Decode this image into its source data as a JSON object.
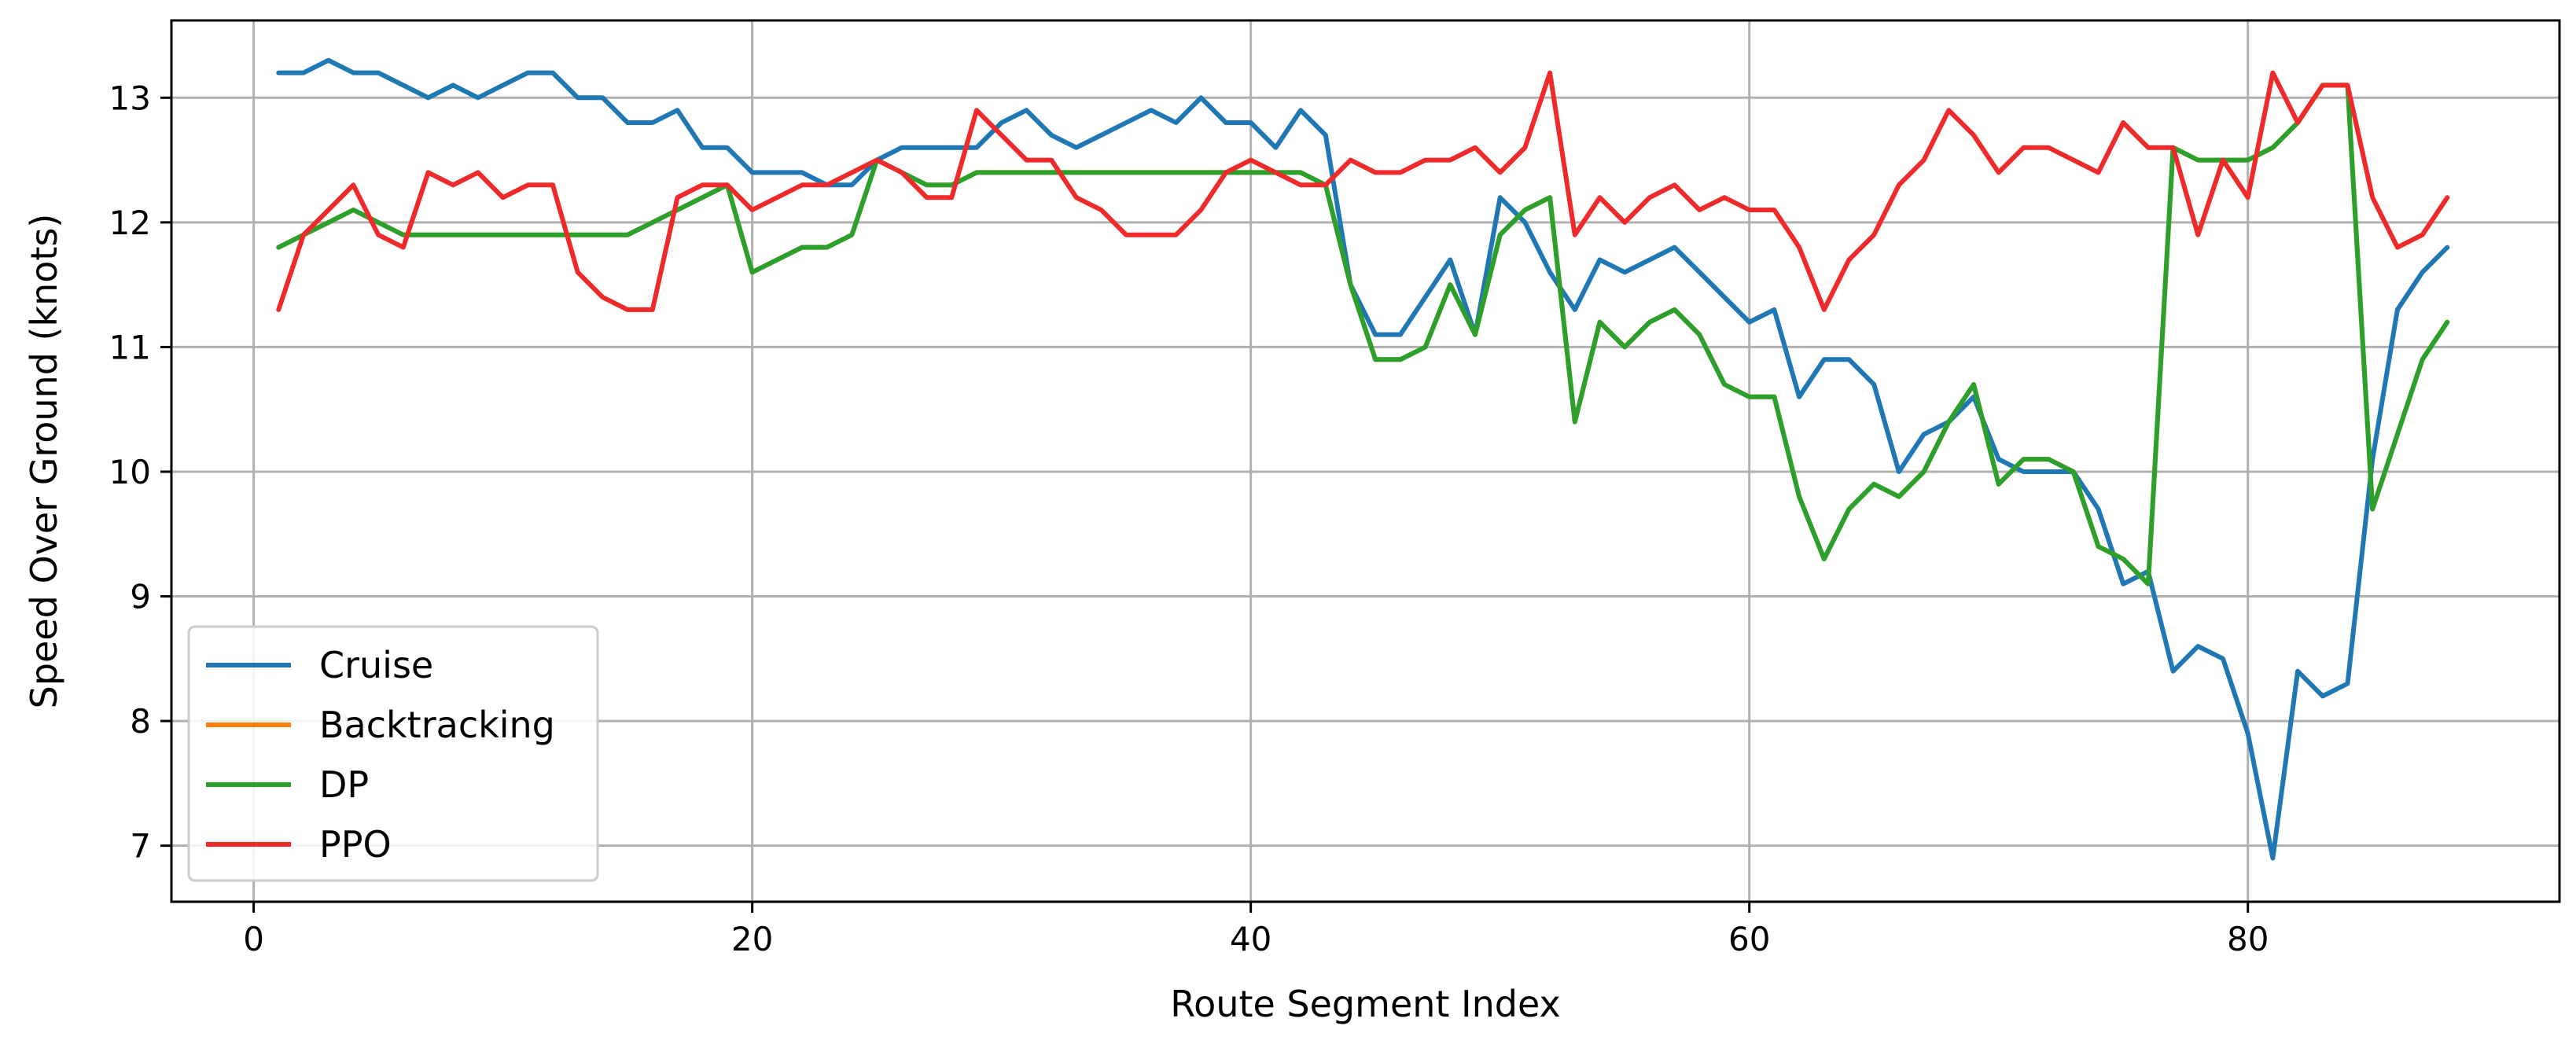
{
  "chart_data": {
    "type": "line",
    "title": "",
    "xlabel": "Route Segment Index",
    "ylabel": "Speed Over Ground (knots)",
    "xlim": [
      -3.3,
      92.5
    ],
    "ylim": [
      6.55,
      13.62
    ],
    "x_ticks": [
      0,
      20,
      40,
      60,
      80
    ],
    "y_ticks": [
      7,
      8,
      9,
      10,
      11,
      12,
      13
    ],
    "grid": true,
    "legend_position": "lower-left",
    "x": [
      1,
      2,
      3,
      4,
      5,
      6,
      7,
      8,
      9,
      10,
      11,
      12,
      13,
      14,
      15,
      16,
      17,
      18,
      19,
      20,
      21,
      22,
      23,
      24,
      25,
      26,
      27,
      28,
      29,
      30,
      31,
      32,
      33,
      34,
      35,
      36,
      37,
      38,
      39,
      40,
      41,
      42,
      43,
      44,
      45,
      46,
      47,
      48,
      49,
      50,
      51,
      52,
      53,
      54,
      55,
      56,
      57,
      58,
      59,
      60,
      61,
      62,
      63,
      64,
      65,
      66,
      67,
      68,
      69,
      70,
      71,
      72,
      73,
      74,
      75,
      76,
      77,
      78,
      79,
      80,
      81,
      82,
      83,
      84,
      85,
      86,
      87,
      88
    ],
    "series": [
      {
        "name": "Cruise",
        "color": "#1f77b4",
        "values": [
          13.2,
          13.2,
          13.3,
          13.2,
          13.2,
          13.1,
          13.0,
          13.1,
          13.0,
          13.1,
          13.2,
          13.2,
          13.0,
          13.0,
          12.8,
          12.8,
          12.9,
          12.6,
          12.6,
          12.4,
          12.4,
          12.4,
          12.3,
          12.3,
          12.5,
          12.6,
          12.6,
          12.6,
          12.6,
          12.8,
          12.9,
          12.7,
          12.6,
          12.7,
          12.8,
          12.9,
          12.8,
          13.0,
          12.8,
          12.8,
          12.6,
          12.9,
          12.7,
          11.5,
          11.1,
          11.1,
          11.4,
          11.7,
          11.1,
          12.2,
          12.0,
          11.6,
          11.3,
          11.7,
          11.6,
          11.7,
          11.8,
          11.6,
          11.4,
          11.2,
          11.3,
          10.6,
          10.9,
          10.9,
          10.7,
          10.0,
          10.3,
          10.4,
          10.6,
          10.1,
          10.0,
          10.0,
          10.0,
          9.7,
          9.1,
          9.2,
          8.4,
          8.6,
          8.5,
          7.9,
          6.9,
          8.4,
          8.2,
          8.3,
          10.1,
          11.3,
          11.6,
          11.8
        ]
      },
      {
        "name": "Backtracking",
        "color": "#ff7f0e",
        "values": [
          11.8,
          11.9,
          12.0,
          12.1,
          12.0,
          11.9,
          11.9,
          11.9,
          11.9,
          11.9,
          11.9,
          11.9,
          11.9,
          11.9,
          11.9,
          12.0,
          12.1,
          12.2,
          12.3,
          11.6,
          11.7,
          11.8,
          11.8,
          11.9,
          12.5,
          12.4,
          12.3,
          12.3,
          12.4,
          12.4,
          12.4,
          12.4,
          12.4,
          12.4,
          12.4,
          12.4,
          12.4,
          12.4,
          12.4,
          12.4,
          12.4,
          12.4,
          12.3,
          11.5,
          10.9,
          10.9,
          11.0,
          11.5,
          11.1,
          11.9,
          12.1,
          12.2,
          10.4,
          11.2,
          11.0,
          11.2,
          11.3,
          11.1,
          10.7,
          10.6,
          10.6,
          9.8,
          9.3,
          9.7,
          9.9,
          9.8,
          10.0,
          10.4,
          10.7,
          9.9,
          10.1,
          10.1,
          10.0,
          9.4,
          9.3,
          9.1,
          12.6,
          12.5,
          12.5,
          12.5,
          12.6,
          12.8,
          13.1,
          13.1,
          9.7,
          10.3,
          10.9,
          11.2
        ]
      },
      {
        "name": "DP",
        "color": "#2ca02c",
        "values": [
          11.8,
          11.9,
          12.0,
          12.1,
          12.0,
          11.9,
          11.9,
          11.9,
          11.9,
          11.9,
          11.9,
          11.9,
          11.9,
          11.9,
          11.9,
          12.0,
          12.1,
          12.2,
          12.3,
          11.6,
          11.7,
          11.8,
          11.8,
          11.9,
          12.5,
          12.4,
          12.3,
          12.3,
          12.4,
          12.4,
          12.4,
          12.4,
          12.4,
          12.4,
          12.4,
          12.4,
          12.4,
          12.4,
          12.4,
          12.4,
          12.4,
          12.4,
          12.3,
          11.5,
          10.9,
          10.9,
          11.0,
          11.5,
          11.1,
          11.9,
          12.1,
          12.2,
          10.4,
          11.2,
          11.0,
          11.2,
          11.3,
          11.1,
          10.7,
          10.6,
          10.6,
          9.8,
          9.3,
          9.7,
          9.9,
          9.8,
          10.0,
          10.4,
          10.7,
          9.9,
          10.1,
          10.1,
          10.0,
          9.4,
          9.3,
          9.1,
          12.6,
          12.5,
          12.5,
          12.5,
          12.6,
          12.8,
          13.1,
          13.1,
          9.7,
          10.3,
          10.9,
          11.2
        ]
      },
      {
        "name": "PPO",
        "color": "#ee2a2a",
        "values": [
          11.3,
          11.9,
          12.1,
          12.3,
          11.9,
          11.8,
          12.4,
          12.3,
          12.4,
          12.2,
          12.3,
          12.3,
          11.6,
          11.4,
          11.3,
          11.3,
          12.2,
          12.3,
          12.3,
          12.1,
          12.2,
          12.3,
          12.3,
          12.4,
          12.5,
          12.4,
          12.2,
          12.2,
          12.9,
          12.7,
          12.5,
          12.5,
          12.2,
          12.1,
          11.9,
          11.9,
          11.9,
          12.1,
          12.4,
          12.5,
          12.4,
          12.3,
          12.3,
          12.5,
          12.4,
          12.4,
          12.5,
          12.5,
          12.6,
          12.4,
          12.6,
          13.2,
          11.9,
          12.2,
          12.0,
          12.2,
          12.3,
          12.1,
          12.2,
          12.1,
          12.1,
          11.8,
          11.3,
          11.7,
          11.9,
          12.3,
          12.5,
          12.9,
          12.7,
          12.4,
          12.6,
          12.6,
          12.5,
          12.4,
          12.8,
          12.6,
          12.6,
          11.9,
          12.5,
          12.2,
          13.2,
          12.8,
          13.1,
          13.1,
          12.2,
          11.8,
          11.9,
          12.2
        ]
      }
    ]
  }
}
